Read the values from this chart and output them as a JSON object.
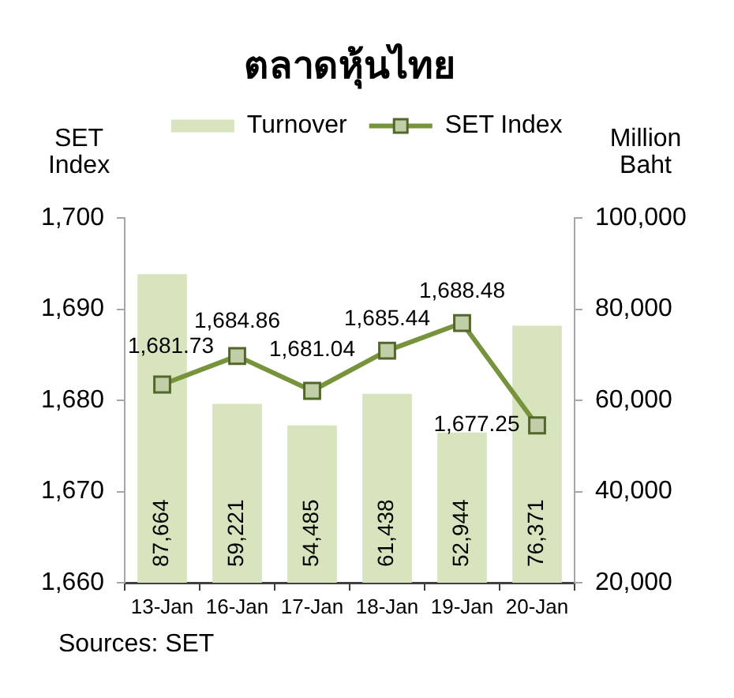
{
  "chart_data": {
    "type": "bar",
    "title": "ตลาดหุ้นไทย",
    "ylabel": "SET Index",
    "y2label": "Million Baht",
    "categories": [
      "13-Jan",
      "16-Jan",
      "17-Jan",
      "18-Jan",
      "19-Jan",
      "20-Jan"
    ],
    "series": [
      {
        "name": "Turnover",
        "axis": "y2",
        "color": "#d7e4bd",
        "values": [
          87664,
          59221,
          54485,
          61438,
          52944,
          76371
        ],
        "value_labels": [
          "87,664",
          "59,221",
          "54,485",
          "61,438",
          "52,944",
          "76,371"
        ]
      },
      {
        "name": "SET Index",
        "type": "line",
        "color": "#77933c",
        "values": [
          1681.73,
          1684.86,
          1681.04,
          1685.44,
          1688.48,
          1677.25
        ],
        "value_labels": [
          "1,681.73",
          "1,684.86",
          "1,681.04",
          "1,685.44",
          "1,688.48",
          "1,677.25"
        ]
      }
    ],
    "ylim": [
      1660,
      1700
    ],
    "yticks": [
      {
        "value": 1660,
        "label": "1,660"
      },
      {
        "value": 1670,
        "label": "1,670"
      },
      {
        "value": 1680,
        "label": "1,680"
      },
      {
        "value": 1690,
        "label": "1,690"
      },
      {
        "value": 1700,
        "label": "1,700"
      }
    ],
    "y2lim": [
      20000,
      100000
    ],
    "y2ticks": [
      {
        "value": 20000,
        "label": "20,000"
      },
      {
        "value": 40000,
        "label": "40,000"
      },
      {
        "value": 60000,
        "label": "60,000"
      },
      {
        "value": 80000,
        "label": "80,000"
      },
      {
        "value": 100000,
        "label": "100,000"
      }
    ],
    "grid": false,
    "legend": "top",
    "marker": "square",
    "line_style": "solid",
    "annotations": [
      "Sources: SET"
    ]
  }
}
